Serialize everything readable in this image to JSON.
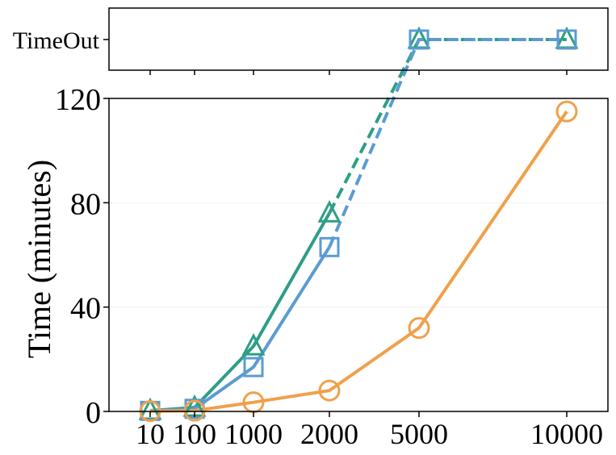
{
  "chart_data": {
    "type": "line",
    "title": "",
    "xlabel": "",
    "ylabel": "Time (minutes)",
    "categories": [
      "10",
      "100",
      "1000",
      "2000",
      "5000",
      "10000"
    ],
    "x": [
      10,
      100,
      1000,
      2000,
      5000,
      10000
    ],
    "ylim": [
      0,
      120
    ],
    "yticks": [
      0,
      40,
      80,
      120
    ],
    "timeout_label": "TimeOut",
    "legend": "none",
    "grid": "faint horizontal",
    "series": [
      {
        "color": "#2e9e86",
        "marker": "triangle",
        "values": [
          0.3,
          1.5,
          25,
          76,
          "TimeOut",
          "TimeOut"
        ]
      },
      {
        "color": "#5b9bd1",
        "marker": "square",
        "values": [
          0.2,
          1.0,
          17,
          63,
          "TimeOut",
          "TimeOut"
        ]
      },
      {
        "color": "#f0a04b",
        "marker": "circle",
        "values": [
          0.1,
          0.3,
          3.5,
          8,
          32,
          115
        ]
      }
    ]
  }
}
